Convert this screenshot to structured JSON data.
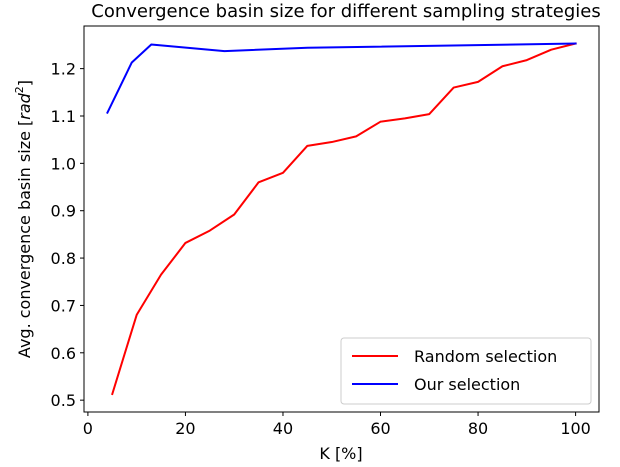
{
  "chart_data": {
    "type": "line",
    "title": "Convergence basin size for different sampling strategies",
    "xlabel": "K [%]",
    "ylabel": {
      "prefix": "Avg. convergence basin size [",
      "unit": "rad",
      "exponent": "2",
      "suffix": "]"
    },
    "xlim": [
      -0.8,
      104.8
    ],
    "ylim": [
      0.475,
      1.29
    ],
    "xticks": [
      0,
      20,
      40,
      60,
      80,
      100
    ],
    "xtick_labels": [
      "0",
      "20",
      "40",
      "60",
      "80",
      "100"
    ],
    "yticks": [
      0.5,
      0.6,
      0.7,
      0.8,
      0.9,
      1.0,
      1.1,
      1.2
    ],
    "ytick_labels": [
      "0.5",
      "0.6",
      "0.7",
      "0.8",
      "0.9",
      "1.0",
      "1.1",
      "1.2"
    ],
    "grid": false,
    "legend_position": "lower-right",
    "series": [
      {
        "name": "Random selection",
        "color": "#ff0000",
        "x": [
          5,
          10,
          15,
          20,
          25,
          30,
          35,
          40,
          45,
          50,
          55,
          60,
          65,
          70,
          75,
          80,
          85,
          90,
          95,
          100
        ],
        "y": [
          0.513,
          0.68,
          0.765,
          0.832,
          0.858,
          0.892,
          0.96,
          0.98,
          1.037,
          1.045,
          1.057,
          1.088,
          1.095,
          1.104,
          1.16,
          1.172,
          1.205,
          1.218,
          1.24,
          1.253
        ]
      },
      {
        "name": "Our selection",
        "color": "#0000ff",
        "x": [
          4,
          9,
          13,
          28,
          45,
          100
        ],
        "y": [
          1.107,
          1.213,
          1.251,
          1.237,
          1.244,
          1.253
        ]
      }
    ]
  }
}
